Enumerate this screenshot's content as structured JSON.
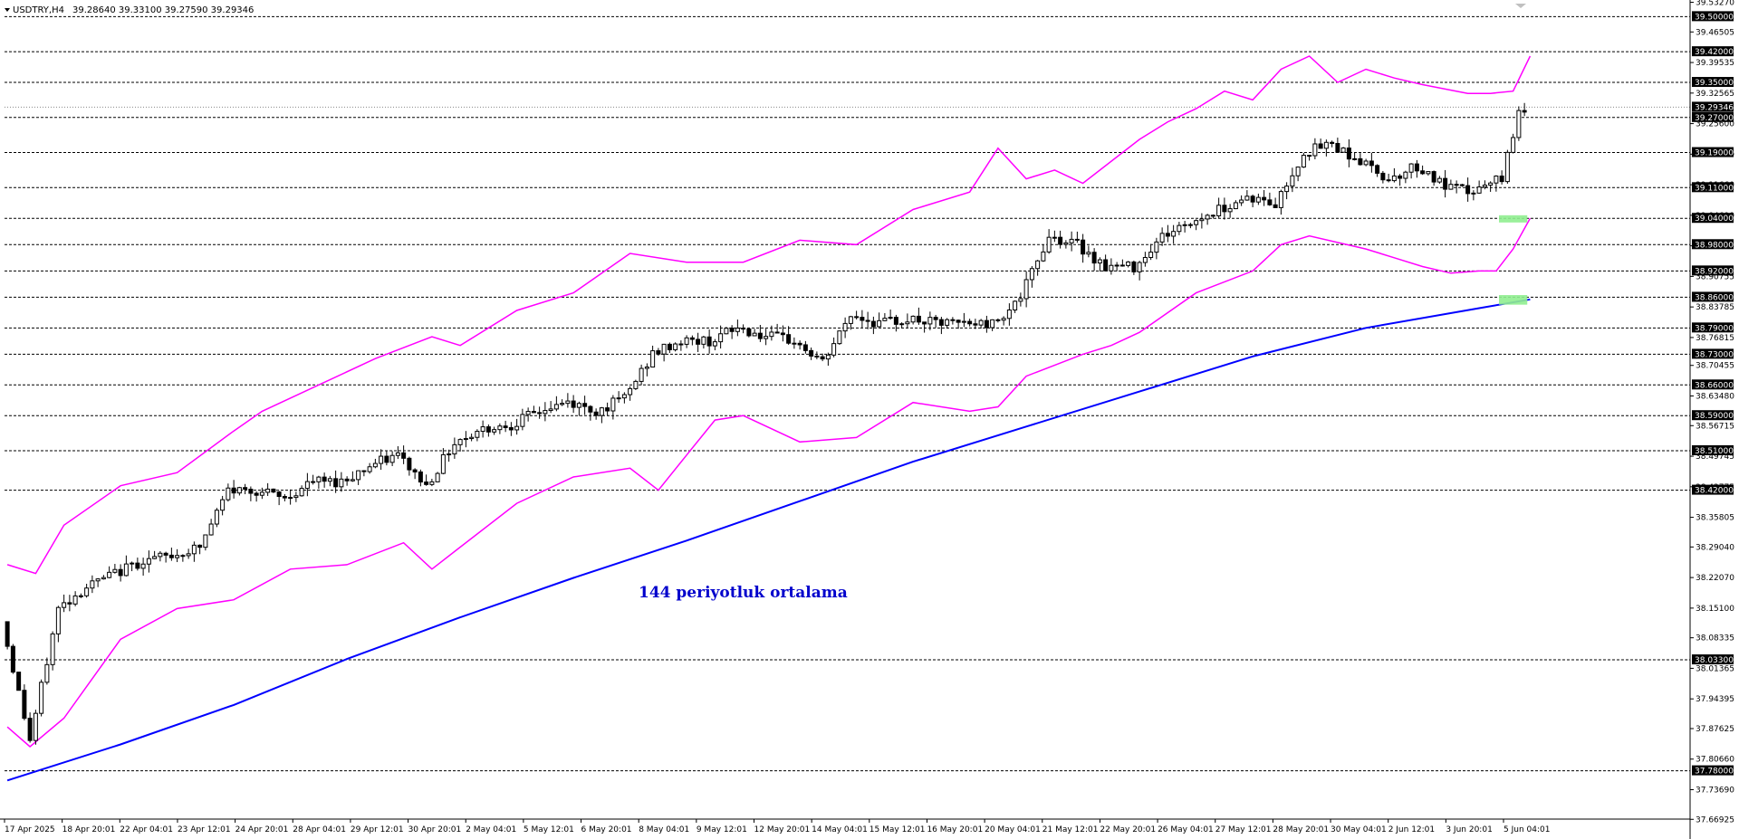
{
  "header": {
    "symbol": "USDTRY,H4",
    "ohlc": "39.28640 39.33100 39.27590 39.29346"
  },
  "annotation": "144 periyotluk ortalama",
  "colors": {
    "background": "#ffffff",
    "bull_candle": "#ffffff",
    "bear_candle": "#000000",
    "bollinger": "#ff00ff",
    "moving_average": "#0000ff",
    "level_lines": "#000000",
    "highlight": "#90ee90",
    "annotation": "#0000cc"
  },
  "chart_data": {
    "type": "candlestick",
    "title": "USDTRY,H4",
    "ylim": [
      37.6698,
      39.5338
    ],
    "y_ticks": [
      "39.53270",
      "39.46505",
      "39.39535",
      "39.32565",
      "39.25600",
      "39.18630",
      "39.11660",
      "39.04690",
      "38.97725",
      "38.90755",
      "38.83785",
      "38.76815",
      "38.70455",
      "38.63480",
      "38.56715",
      "38.49745",
      "38.42775",
      "38.35805",
      "38.29040",
      "38.22070",
      "38.15100",
      "38.08335",
      "38.01365",
      "37.94395",
      "37.87625",
      "37.80660",
      "37.73690",
      "37.66925"
    ],
    "level_lines": [
      39.5,
      39.42,
      39.35,
      39.27,
      39.19,
      39.11,
      39.04,
      38.98,
      38.92,
      38.86,
      38.79,
      38.73,
      38.66,
      38.59,
      38.51,
      38.42,
      38.033,
      37.78
    ],
    "level_labels": [
      "39.50000",
      "39.42000",
      "39.35000",
      "39.27000",
      "39.19000",
      "39.11000",
      "39.04000",
      "38.98000",
      "38.92000",
      "38.86000",
      "38.79000",
      "38.73000",
      "38.66000",
      "38.59000",
      "38.51000",
      "38.42000",
      "38.03300",
      "37.78000"
    ],
    "current_price": 39.29346,
    "current_price_label": "39.29346",
    "x_labels": [
      "17 Apr 2025",
      "18 Apr 20:01",
      "22 Apr 04:01",
      "23 Apr 12:01",
      "24 Apr 20:01",
      "28 Apr 04:01",
      "29 Apr 12:01",
      "30 Apr 20:01",
      "2 May 04:01",
      "5 May 12:01",
      "6 May 20:01",
      "8 May 04:01",
      "9 May 12:01",
      "12 May 20:01",
      "14 May 04:01",
      "15 May 12:01",
      "16 May 20:01",
      "20 May 04:01",
      "21 May 12:01",
      "22 May 20:01",
      "26 May 04:01",
      "27 May 12:01",
      "28 May 20:01",
      "30 May 04:01",
      "2 Jun 12:01",
      "3 Jun 20:01",
      "5 Jun 04:01"
    ],
    "moving_average_144": {
      "x": [
        0,
        20,
        40,
        60,
        80,
        100,
        120,
        140,
        160,
        180,
        200,
        220,
        240,
        260,
        269
      ],
      "y": [
        37.758,
        37.84,
        37.93,
        38.035,
        38.13,
        38.22,
        38.305,
        38.395,
        38.485,
        38.565,
        38.645,
        38.725,
        38.79,
        38.835,
        38.855
      ]
    },
    "bollinger_upper": {
      "x": [
        0,
        5,
        10,
        20,
        30,
        40,
        45,
        55,
        65,
        75,
        80,
        90,
        100,
        110,
        120,
        130,
        140,
        150,
        160,
        170,
        175,
        180,
        185,
        190,
        200,
        205,
        210,
        215,
        220,
        225,
        230,
        235,
        240,
        245,
        250,
        258,
        262,
        266,
        269
      ],
      "y": [
        38.25,
        38.23,
        38.34,
        38.43,
        38.46,
        38.555,
        38.6,
        38.66,
        38.72,
        38.77,
        38.75,
        38.83,
        38.87,
        38.96,
        38.94,
        38.94,
        38.99,
        38.98,
        39.06,
        39.1,
        39.2,
        39.13,
        39.15,
        39.12,
        39.22,
        39.26,
        39.29,
        39.33,
        39.31,
        39.38,
        39.41,
        39.35,
        39.38,
        39.36,
        39.345,
        39.325,
        39.325,
        39.33,
        39.41
      ]
    },
    "bollinger_lower": {
      "x": [
        0,
        4,
        10,
        20,
        30,
        40,
        50,
        60,
        70,
        75,
        80,
        90,
        100,
        110,
        115,
        120,
        125,
        130,
        140,
        150,
        160,
        170,
        175,
        180,
        190,
        195,
        200,
        210,
        220,
        225,
        230,
        240,
        245,
        250,
        255,
        260,
        263,
        266,
        269
      ],
      "y": [
        37.88,
        37.835,
        37.9,
        38.08,
        38.15,
        38.17,
        38.24,
        38.25,
        38.3,
        38.24,
        38.29,
        38.39,
        38.45,
        38.47,
        38.42,
        38.5,
        38.58,
        38.59,
        38.53,
        38.54,
        38.62,
        38.6,
        38.61,
        38.68,
        38.73,
        38.75,
        38.78,
        38.87,
        38.92,
        38.98,
        39.0,
        38.97,
        38.95,
        38.93,
        38.915,
        38.92,
        38.92,
        38.97,
        39.04
      ]
    },
    "highlights": [
      {
        "x_from": 264,
        "x_to": 269,
        "y_from": 39.033,
        "y_to": 39.047
      },
      {
        "x_from": 264,
        "x_to": 269,
        "y_from": 38.843,
        "y_to": 38.865
      }
    ],
    "bars": 269,
    "anchor_ohlc": [
      [
        0,
        38.12
      ],
      [
        5,
        37.85
      ],
      [
        10,
        38.15
      ],
      [
        15,
        38.2
      ],
      [
        20,
        38.23
      ],
      [
        25,
        38.26
      ],
      [
        30,
        38.27
      ],
      [
        35,
        38.29
      ],
      [
        40,
        38.42
      ],
      [
        45,
        38.42
      ],
      [
        50,
        38.4
      ],
      [
        55,
        38.44
      ],
      [
        60,
        38.44
      ],
      [
        65,
        38.475
      ],
      [
        70,
        38.5
      ],
      [
        75,
        38.43
      ],
      [
        80,
        38.53
      ],
      [
        85,
        38.56
      ],
      [
        90,
        38.57
      ],
      [
        95,
        38.6
      ],
      [
        100,
        38.62
      ],
      [
        105,
        38.6
      ],
      [
        110,
        38.63
      ],
      [
        115,
        38.73
      ],
      [
        120,
        38.76
      ],
      [
        125,
        38.76
      ],
      [
        130,
        38.79
      ],
      [
        135,
        38.77
      ],
      [
        140,
        38.76
      ],
      [
        145,
        38.71
      ],
      [
        150,
        38.82
      ],
      [
        155,
        38.8
      ],
      [
        160,
        38.81
      ],
      [
        165,
        38.8
      ],
      [
        170,
        38.8
      ],
      [
        175,
        38.8
      ],
      [
        180,
        38.86
      ],
      [
        185,
        39.0
      ],
      [
        190,
        38.98
      ],
      [
        195,
        38.93
      ],
      [
        200,
        38.93
      ],
      [
        205,
        39.0
      ],
      [
        210,
        39.03
      ],
      [
        215,
        39.06
      ],
      [
        220,
        39.09
      ],
      [
        225,
        39.07
      ],
      [
        230,
        39.19
      ],
      [
        235,
        39.21
      ],
      [
        240,
        39.17
      ],
      [
        245,
        39.13
      ],
      [
        250,
        39.16
      ],
      [
        255,
        39.11
      ],
      [
        260,
        39.1
      ],
      [
        265,
        39.13
      ],
      [
        268,
        39.29
      ]
    ]
  }
}
